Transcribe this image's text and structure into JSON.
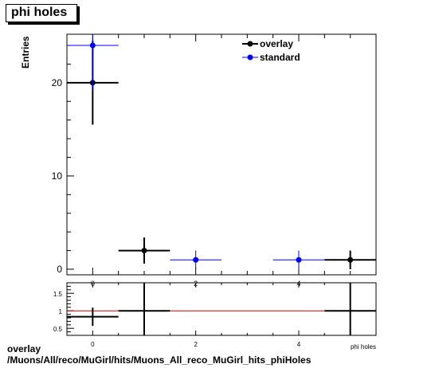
{
  "title": "phi holes",
  "footer": {
    "line1": "overlay",
    "line2": "/Muons/All/reco/MuGirl/hits/Muons_All_reco_MuGirl_hits_phiHoles"
  },
  "colors": {
    "overlay": "#000000",
    "standard": "#0000ff",
    "ratio_line": "#cc0000"
  },
  "chart_data": [
    {
      "type": "scatter",
      "title": "phi holes",
      "ylabel": "Entries",
      "xlabel": "phi holes",
      "xlim": [
        -0.5,
        5.5
      ],
      "ylim": [
        -0.6,
        25.2
      ],
      "xticks": [
        0,
        2,
        4
      ],
      "yticks": [
        0,
        10,
        20
      ],
      "legend_position": "top-right",
      "series": [
        {
          "name": "overlay",
          "points": [
            {
              "x": 0,
              "y": 20,
              "xerr": 0.5,
              "yerr": 4.5
            },
            {
              "x": 1,
              "y": 2,
              "xerr": 0.5,
              "yerr": 1.4
            },
            {
              "x": 5,
              "y": 1,
              "xerr": 0.5,
              "yerr": 1.0
            }
          ]
        },
        {
          "name": "standard",
          "points": [
            {
              "x": 0,
              "y": 24,
              "xerr": 0.5,
              "yerr": 4.9
            },
            {
              "x": 2,
              "y": 1,
              "xerr": 0.5,
              "yerr": 1.0
            },
            {
              "x": 4,
              "y": 1,
              "xerr": 0.5,
              "yerr": 1.0
            }
          ]
        }
      ]
    },
    {
      "type": "scatter",
      "xlim": [
        -0.5,
        5.5
      ],
      "ylim": [
        0.3,
        1.8
      ],
      "xticks": [
        0,
        2,
        4
      ],
      "yticks": [
        0.5,
        1,
        1.5
      ],
      "reference_line": 1,
      "series": [
        {
          "name": "",
          "points": [
            {
              "x": 0,
              "y": 0.83,
              "xerr": 0.5,
              "yerr": 0.26
            },
            {
              "x": 1,
              "y": 1,
              "xerr": 0.5,
              "yerr": 1.0
            },
            {
              "x": 5,
              "y": 1,
              "xerr": 0.5,
              "yerr": 1.0
            }
          ]
        }
      ]
    }
  ]
}
